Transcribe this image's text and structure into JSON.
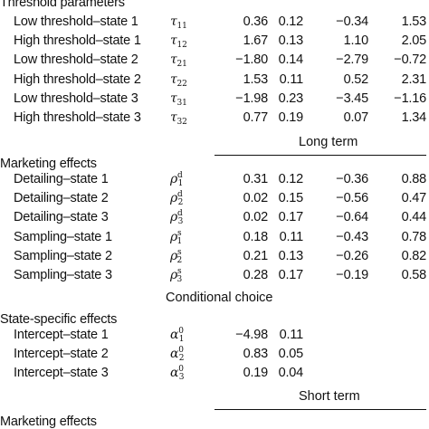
{
  "threshold": {
    "title": "Threshold parameters",
    "rows": [
      {
        "label": "Low threshold–state 1",
        "sym": "τ",
        "sub": "11",
        "sup": "",
        "v": [
          "0.36",
          "0.12",
          "−0.34",
          "1.53"
        ]
      },
      {
        "label": "High threshold–state 1",
        "sym": "τ",
        "sub": "12",
        "sup": "",
        "v": [
          "1.67",
          "0.13",
          "1.10",
          "2.05"
        ]
      },
      {
        "label": "Low threshold–state 2",
        "sym": "τ",
        "sub": "21",
        "sup": "",
        "v": [
          "−1.80",
          "0.14",
          "−2.79",
          "−0.72"
        ]
      },
      {
        "label": "High threshold–state 2",
        "sym": "τ",
        "sub": "22",
        "sup": "",
        "v": [
          "1.53",
          "0.11",
          "0.52",
          "2.31"
        ]
      },
      {
        "label": "Low threshold–state 3",
        "sym": "τ",
        "sub": "31",
        "sup": "",
        "v": [
          "−1.98",
          "0.23",
          "−3.45",
          "−1.16"
        ]
      },
      {
        "label": "High threshold–state 3",
        "sym": "τ",
        "sub": "32",
        "sup": "",
        "v": [
          "0.77",
          "0.19",
          "0.07",
          "1.34"
        ]
      }
    ]
  },
  "long_term": {
    "heading": "Long term",
    "title": "Marketing effects",
    "rows": [
      {
        "label": "Detailing–state 1",
        "sym": "ρ",
        "sub": "1",
        "sup": "d",
        "v": [
          "0.31",
          "0.12",
          "−0.36",
          "0.88"
        ]
      },
      {
        "label": "Detailing–state 2",
        "sym": "ρ",
        "sub": "2",
        "sup": "d",
        "v": [
          "0.02",
          "0.15",
          "−0.56",
          "0.47"
        ]
      },
      {
        "label": "Detailing–state 3",
        "sym": "ρ",
        "sub": "3",
        "sup": "d",
        "v": [
          "0.02",
          "0.17",
          "−0.64",
          "0.44"
        ]
      },
      {
        "label": "Sampling–state 1",
        "sym": "ρ",
        "sub": "1",
        "sup": "s",
        "v": [
          "0.18",
          "0.11",
          "−0.43",
          "0.78"
        ]
      },
      {
        "label": "Sampling–state 2",
        "sym": "ρ",
        "sub": "2",
        "sup": "s",
        "v": [
          "0.21",
          "0.13",
          "−0.26",
          "0.82"
        ]
      },
      {
        "label": "Sampling–state 3",
        "sym": "ρ",
        "sub": "3",
        "sup": "s",
        "v": [
          "0.28",
          "0.17",
          "−0.19",
          "0.58"
        ]
      }
    ]
  },
  "conditional": {
    "heading": "Conditional choice",
    "title": "State-specific effects",
    "rows": [
      {
        "label": "Intercept–state 1",
        "sym": "α",
        "sub": "1",
        "sup": "0",
        "v": [
          "−4.98",
          "0.11",
          "",
          ""
        ]
      },
      {
        "label": "Intercept–state 2",
        "sym": "α",
        "sub": "2",
        "sup": "0",
        "v": [
          "0.83",
          "0.05",
          "",
          ""
        ]
      },
      {
        "label": "Intercept–state 3",
        "sym": "α",
        "sub": "3",
        "sup": "0",
        "v": [
          "0.19",
          "0.04",
          "",
          ""
        ]
      }
    ]
  },
  "short_term": {
    "heading": "Short term",
    "title": "Marketing effects"
  }
}
